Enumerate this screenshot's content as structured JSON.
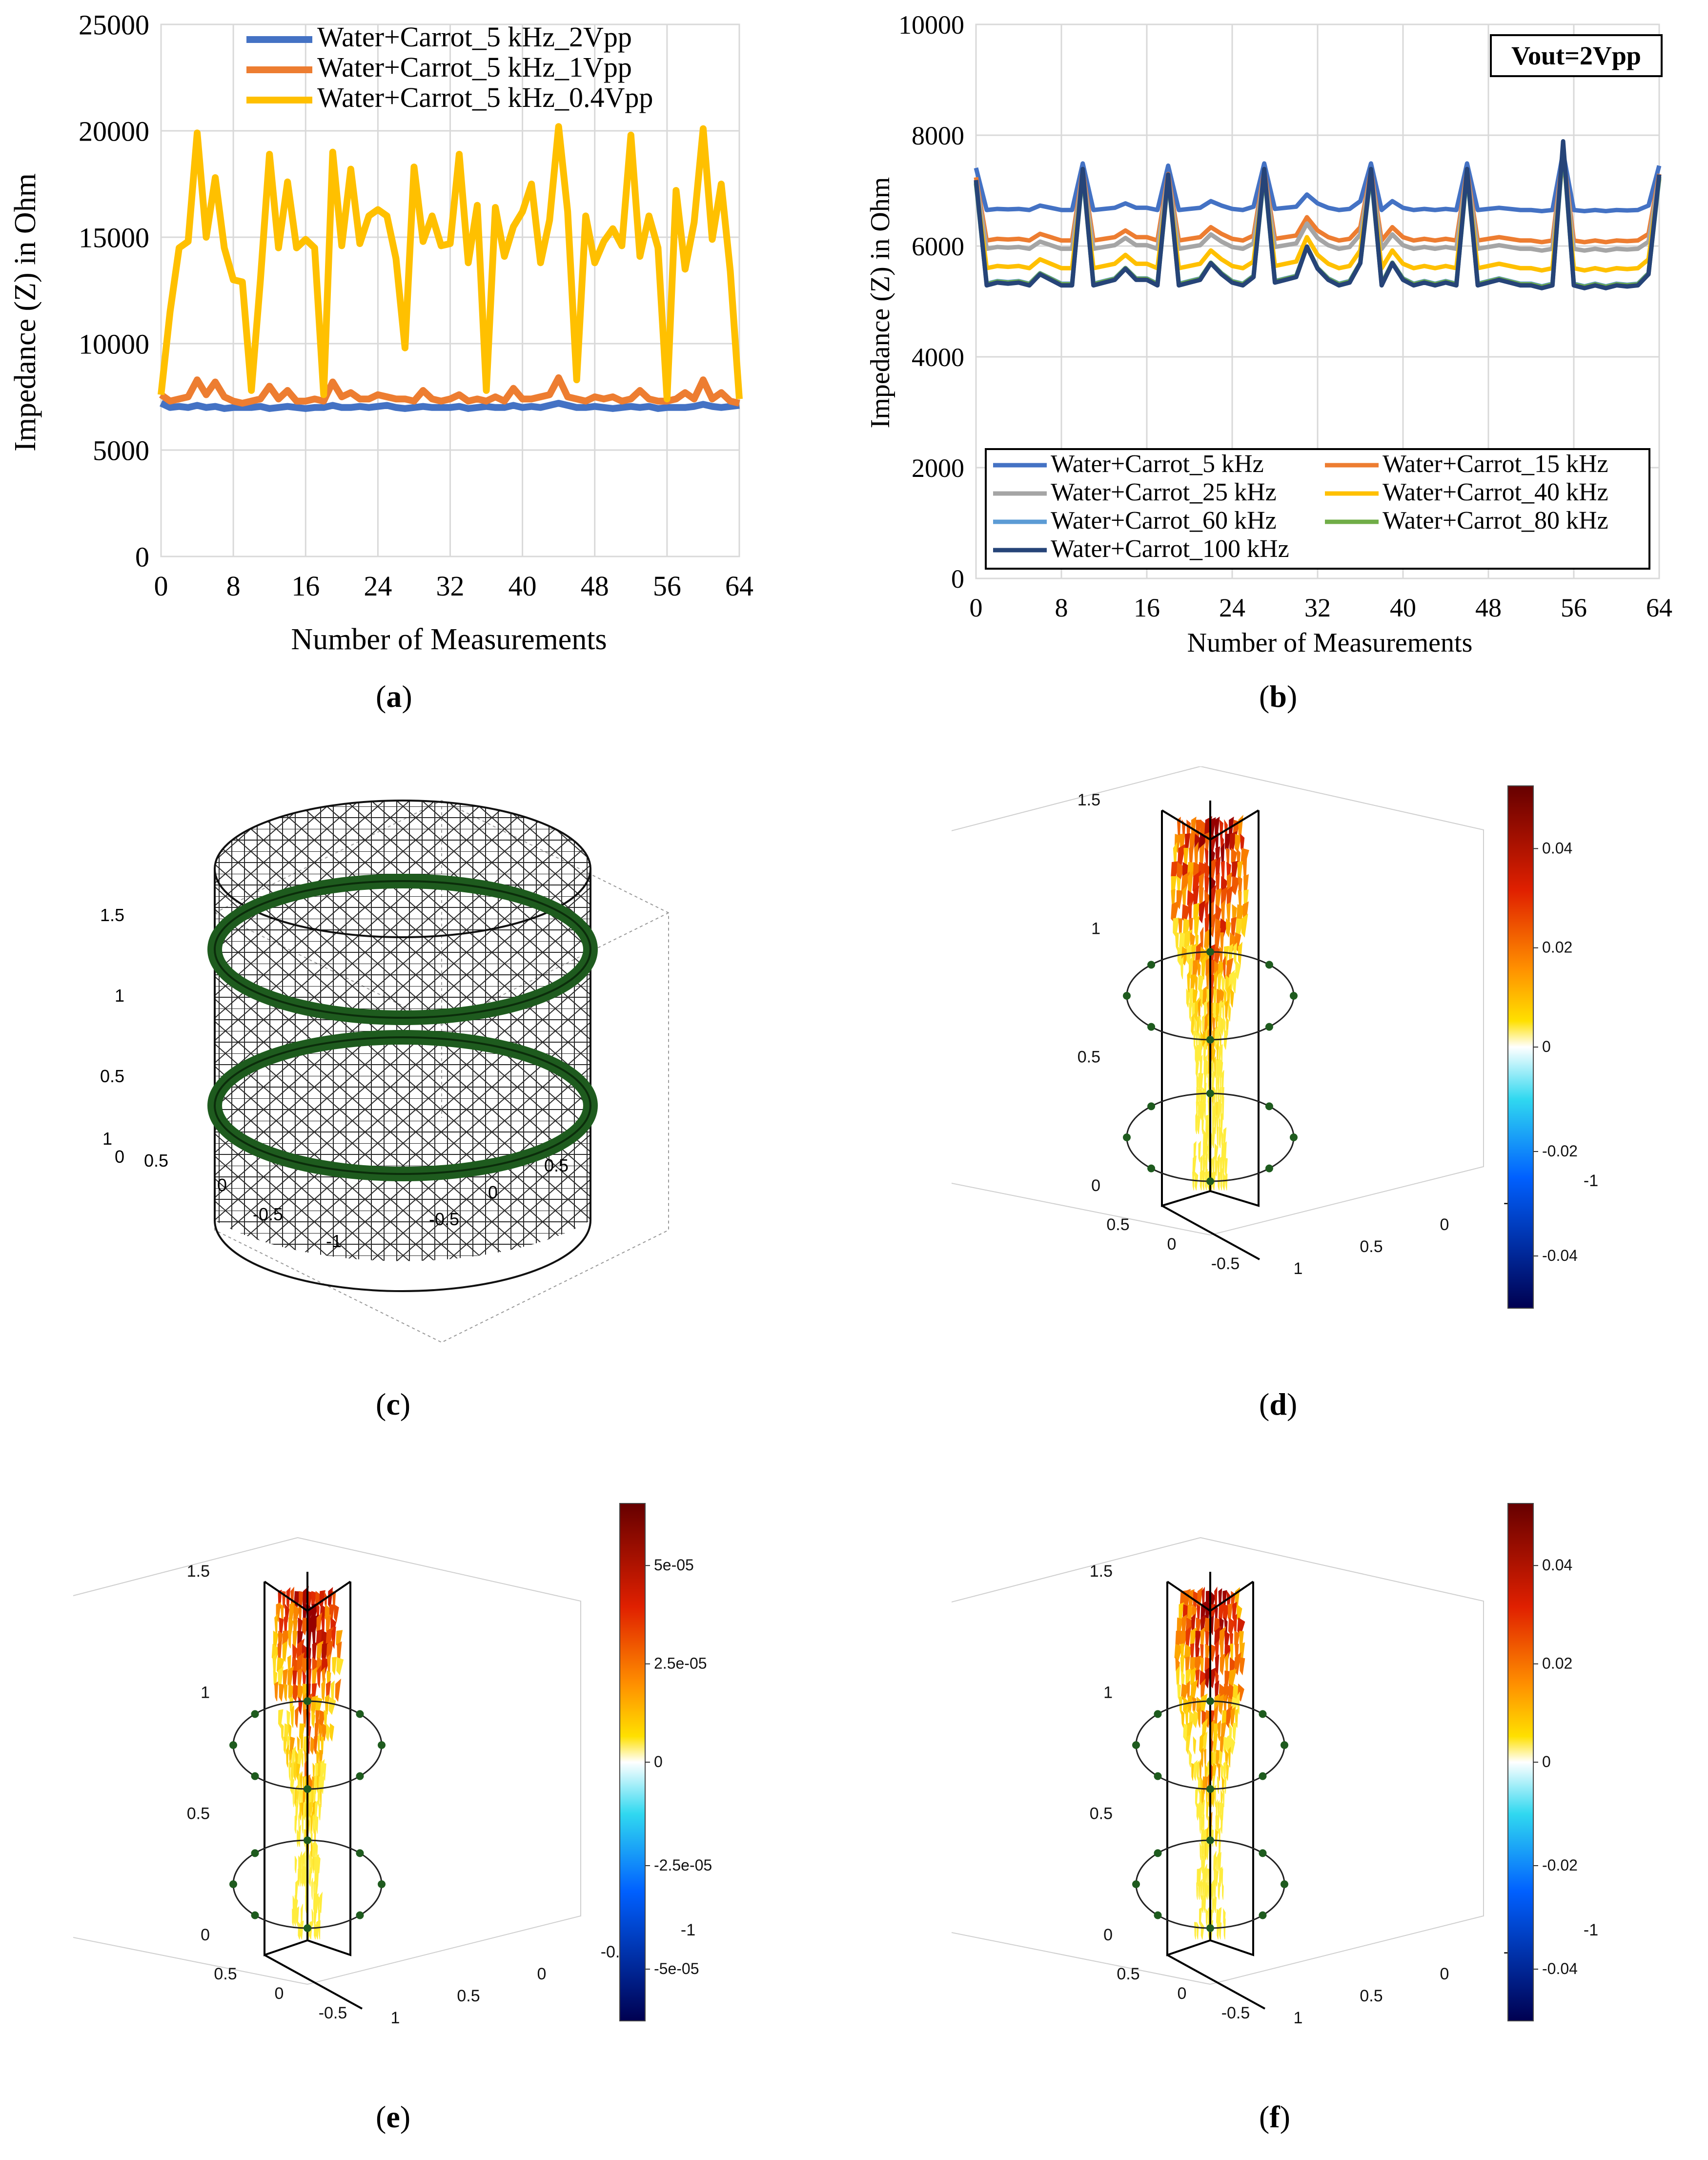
{
  "panel_labels": [
    "(a)",
    "(b)",
    "(c)",
    "(d)",
    "(e)",
    "(f)"
  ],
  "chart_data": [
    {
      "id": "a",
      "type": "line",
      "title": "",
      "xlabel": "Number of Measurements",
      "ylabel": "Impedance  (Z) in Ohm",
      "xlim": [
        0,
        64
      ],
      "ylim": [
        0,
        25000
      ],
      "x_ticks": [
        "0",
        "8",
        "16",
        "24",
        "32",
        "40",
        "48",
        "56",
        "64"
      ],
      "y_ticks": [
        "0",
        "5000",
        "10000",
        "15000",
        "20000",
        "25000"
      ],
      "grid": true,
      "legend": "top-center",
      "series": [
        {
          "name": "Water+Carrot_5 kHz_2Vpp",
          "color": "#4472c4",
          "values": [
            7200,
            7000,
            7050,
            7000,
            7100,
            7000,
            7050,
            6950,
            7000,
            7000,
            7000,
            7050,
            6950,
            7000,
            7050,
            7000,
            6950,
            7000,
            7000,
            7100,
            7000,
            7000,
            7050,
            7000,
            7050,
            7100,
            7000,
            6950,
            7000,
            7050,
            7000,
            7000,
            7000,
            7050,
            6950,
            7000,
            7050,
            7000,
            7000,
            7100,
            7000,
            7050,
            7000,
            7100,
            7200,
            7100,
            7000,
            7000,
            7050,
            7000,
            6950,
            7000,
            7050,
            7000,
            7050,
            6950,
            7000,
            7000,
            7000,
            7050,
            7150,
            7050,
            7000,
            7050,
            7100
          ]
        },
        {
          "name": "Water+Carrot_5 kHz_1Vpp",
          "color": "#ed7d31",
          "values": [
            7600,
            7300,
            7400,
            7500,
            8300,
            7600,
            8200,
            7500,
            7300,
            7200,
            7300,
            7400,
            8000,
            7400,
            7800,
            7300,
            7300,
            7400,
            7300,
            8200,
            7500,
            7700,
            7400,
            7400,
            7600,
            7500,
            7400,
            7400,
            7300,
            7800,
            7400,
            7300,
            7400,
            7600,
            7300,
            7400,
            7300,
            7500,
            7300,
            7900,
            7400,
            7400,
            7500,
            7600,
            8400,
            7500,
            7400,
            7300,
            7500,
            7400,
            7500,
            7300,
            7400,
            7800,
            7400,
            7300,
            7300,
            7400,
            7700,
            7400,
            8300,
            7400,
            7700,
            7300,
            7200
          ]
        },
        {
          "name": "Water+Carrot_5 kHz_0.4Vpp",
          "color": "#ffc000",
          "values": [
            7600,
            11500,
            14500,
            14800,
            19900,
            15000,
            17800,
            14500,
            13000,
            12900,
            7800,
            13000,
            18900,
            14500,
            17600,
            14500,
            14900,
            14500,
            7600,
            19000,
            14600,
            18200,
            14700,
            16000,
            16300,
            16000,
            14000,
            9800,
            18300,
            14800,
            16000,
            14600,
            14700,
            18900,
            13800,
            16500,
            7800,
            16400,
            14100,
            15500,
            16200,
            17500,
            13800,
            15800,
            20200,
            16200,
            8300,
            16000,
            13800,
            14800,
            15400,
            14600,
            19800,
            14100,
            16000,
            14500,
            7400,
            17200,
            13500,
            15700,
            20100,
            14900,
            17500,
            13400,
            7400
          ]
        }
      ]
    },
    {
      "id": "b",
      "type": "line",
      "title": "",
      "annotation": "Vout=2Vpp",
      "xlabel": "Number of Measurements",
      "ylabel": "Impedance  (Z) in Ohm",
      "xlim": [
        0,
        64
      ],
      "ylim": [
        0,
        10000
      ],
      "x_ticks": [
        "0",
        "8",
        "16",
        "24",
        "32",
        "40",
        "48",
        "56",
        "64"
      ],
      "y_ticks": [
        "0",
        "2000",
        "4000",
        "6000",
        "8000",
        "10000"
      ],
      "grid": true,
      "legend": "bottom",
      "base_profile": [
        7200,
        5300,
        5350,
        5330,
        5350,
        5300,
        5500,
        5400,
        5300,
        5300,
        7400,
        5300,
        5350,
        5400,
        5600,
        5400,
        5400,
        5300,
        7300,
        5300,
        5350,
        5400,
        5700,
        5500,
        5350,
        5300,
        5450,
        7400,
        5350,
        5400,
        5450,
        6000,
        5600,
        5400,
        5300,
        5350,
        5700,
        7400,
        5300,
        5700,
        5400,
        5300,
        5350,
        5300,
        5350,
        5300,
        7400,
        5300,
        5350,
        5400,
        5350,
        5300,
        5300,
        5250,
        5300,
        7900,
        5300,
        5250,
        5300,
        5250,
        5300,
        5280,
        5300,
        5500,
        7300
      ],
      "series": [
        {
          "name": "Water+Carrot_5 kHz",
          "color": "#4472c4",
          "baseline": 6650,
          "amplitude": 0.4
        },
        {
          "name": "Water+Carrot_15 kHz",
          "color": "#ed7d31",
          "baseline": 6100,
          "amplitude": 0.6
        },
        {
          "name": "Water+Carrot_25 kHz",
          "color": "#a5a5a5",
          "baseline": 5950,
          "amplitude": 0.65
        },
        {
          "name": "Water+Carrot_40 kHz",
          "color": "#ffc000",
          "baseline": 5600,
          "amplitude": 0.8
        },
        {
          "name": "Water+Carrot_60 kHz",
          "color": "#5b9bd5",
          "baseline": 5320,
          "amplitude": 0.95
        },
        {
          "name": "Water+Carrot_80 kHz",
          "color": "#70ad47",
          "baseline": 5310,
          "amplitude": 0.97
        },
        {
          "name": "Water+Carrot_100 kHz",
          "color": "#264478",
          "baseline": 5290,
          "amplitude": 1.0
        }
      ]
    },
    {
      "id": "c",
      "type": "3d-mesh",
      "z_ticks": [
        "0",
        "0.5",
        "1",
        "1.5"
      ],
      "x_ticks": [
        "-1",
        "-0.5",
        "0",
        "0.5",
        "1"
      ],
      "y_ticks": [
        "0.5",
        "0",
        "-0.5"
      ]
    },
    {
      "id": "d",
      "type": "3d-slice",
      "z_ticks": [
        "0",
        "0.5",
        "1",
        "1.5"
      ],
      "x_ticks": [
        "0.5",
        "0",
        "-0.5"
      ],
      "y_ticks": [
        "1",
        "0.5",
        "0",
        "-0.5",
        "-1"
      ],
      "colorbar_ticks": [
        "0.04",
        "0.02",
        "0",
        "-0.02",
        "-0.04"
      ]
    },
    {
      "id": "e",
      "type": "3d-slice",
      "z_ticks": [
        "0",
        "0.5",
        "1",
        "1.5"
      ],
      "x_ticks": [
        "0.5",
        "0",
        "-0.5"
      ],
      "y_ticks": [
        "1",
        "0.5",
        "0",
        "-0.5",
        "-1"
      ],
      "colorbar_ticks": [
        "5e-05",
        "2.5e-05",
        "0",
        "-2.5e-05",
        "-5e-05"
      ]
    },
    {
      "id": "f",
      "type": "3d-slice",
      "z_ticks": [
        "0",
        "0.5",
        "1",
        "1.5"
      ],
      "x_ticks": [
        "0.5",
        "0",
        "-0.5"
      ],
      "y_ticks": [
        "1",
        "0.5",
        "0",
        "-0.5",
        "-1"
      ],
      "colorbar_ticks": [
        "0.04",
        "0.02",
        "0",
        "-0.02",
        "-0.04"
      ]
    }
  ]
}
